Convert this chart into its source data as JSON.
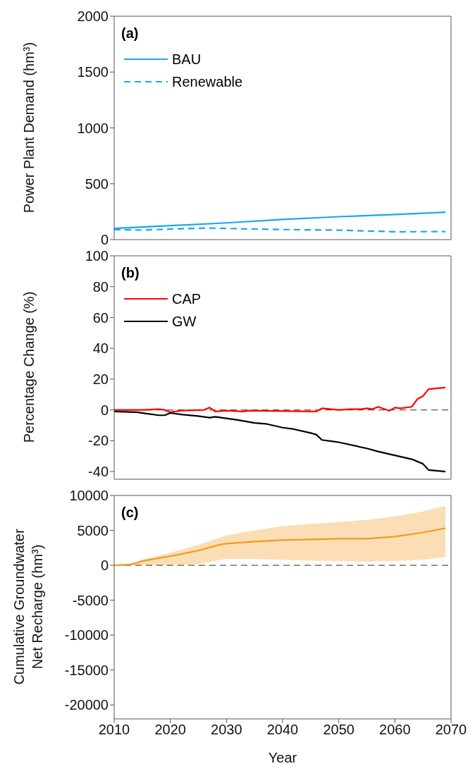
{
  "chart_data": [
    {
      "type": "line",
      "title": "(a)",
      "ylabel": "Power Plant Demand (hm³)",
      "xlim": [
        2010,
        2070
      ],
      "xticks": [
        2010,
        2020,
        2030,
        2040,
        2050,
        2060,
        2070
      ],
      "ylim": [
        0,
        2000
      ],
      "yticks": [
        0,
        500,
        1000,
        1500,
        2000
      ],
      "tick_labels": "y",
      "legend": "top left",
      "series": [
        {
          "name": "BAU",
          "color": "#1aa7ec",
          "line_style": "solid",
          "x": [
            2010,
            2020,
            2030,
            2040,
            2050,
            2060,
            2069
          ],
          "values": [
            100,
            125,
            150,
            180,
            205,
            225,
            245
          ]
        },
        {
          "name": "Renewable",
          "color": "#1aa7ec",
          "line_style": "dashed",
          "x": [
            2010,
            2015,
            2020,
            2027,
            2030,
            2035,
            2040,
            2050,
            2060,
            2069
          ],
          "values": [
            90,
            85,
            95,
            104,
            100,
            95,
            90,
            85,
            70,
            72
          ]
        }
      ]
    },
    {
      "type": "line",
      "title": "(b)",
      "ylabel": "Percentage Change (%)",
      "xlim": [
        2010,
        2070
      ],
      "xticks": [
        2010,
        2020,
        2030,
        2040,
        2050,
        2060,
        2070
      ],
      "ylim": [
        -45,
        100
      ],
      "yticks": [
        -40,
        -20,
        0,
        20,
        40,
        60,
        80,
        100
      ],
      "tick_labels": "y",
      "legend": "top left",
      "ref_lines": [
        {
          "axis": "y",
          "value": 0,
          "color": "#555555",
          "line_style": "dashed"
        }
      ],
      "series": [
        {
          "name": "CAP",
          "color": "#ff0000",
          "line_style": "solid",
          "x": [
            2010,
            2015,
            2018,
            2019,
            2020,
            2022,
            2026,
            2027,
            2028,
            2030,
            2033,
            2034,
            2046,
            2047,
            2050,
            2052,
            2054,
            2055,
            2056,
            2057,
            2059,
            2060,
            2061,
            2063,
            2064,
            2065,
            2066,
            2069
          ],
          "values": [
            0,
            0,
            0.5,
            0,
            -1.5,
            -0.5,
            0,
            1.5,
            -1,
            -0.5,
            -1,
            -0.5,
            -1,
            1,
            0,
            0.5,
            0.5,
            1,
            0.5,
            2,
            -0.5,
            1.5,
            1,
            2,
            7,
            9,
            13.5,
            14.5
          ]
        },
        {
          "name": "GW",
          "color": "#000000",
          "line_style": "solid",
          "x": [
            2010,
            2014,
            2016,
            2018,
            2019,
            2020,
            2022,
            2025,
            2027,
            2028,
            2030,
            2032,
            2035,
            2037,
            2040,
            2042,
            2045,
            2046,
            2047,
            2049,
            2050,
            2055,
            2057,
            2060,
            2063,
            2065,
            2066,
            2069
          ],
          "values": [
            -1,
            -1.5,
            -2.5,
            -3.5,
            -3.5,
            -2,
            -3,
            -4,
            -5,
            -4.5,
            -5.5,
            -6.5,
            -8.5,
            -9,
            -11.5,
            -12.5,
            -15,
            -16,
            -19.5,
            -20.5,
            -21,
            -25,
            -27,
            -29.5,
            -32,
            -35,
            -39,
            -40
          ]
        }
      ]
    },
    {
      "type": "line",
      "title": "(c)",
      "xlabel": "Year",
      "ylabel": "Cumulative Groundwater Net Recharge (hm³)",
      "xlim": [
        2010,
        2070
      ],
      "xticks": [
        2010,
        2020,
        2030,
        2040,
        2050,
        2060,
        2070
      ],
      "ylim": [
        -22000,
        10000
      ],
      "yticks": [
        -20000,
        -15000,
        -10000,
        -5000,
        0,
        5000,
        10000
      ],
      "ref_lines": [
        {
          "axis": "y",
          "value": 0,
          "color": "#555555",
          "line_style": "dashed"
        }
      ],
      "series": [
        {
          "color": "#f39c1f",
          "line_style": "solid",
          "x": [
            2010,
            2013,
            2015,
            2020,
            2025,
            2029,
            2030,
            2035,
            2040,
            2045,
            2050,
            2055,
            2060,
            2065,
            2069
          ],
          "values": [
            0,
            100,
            600,
            1300,
            2100,
            3000,
            3100,
            3400,
            3600,
            3700,
            3800,
            3800,
            4100,
            4700,
            5300
          ],
          "lower": [
            0,
            0,
            0,
            0,
            150,
            800,
            900,
            900,
            800,
            650,
            600,
            500,
            600,
            800,
            1200
          ],
          "upper": [
            0,
            300,
            800,
            1800,
            2900,
            4000,
            4300,
            5000,
            5600,
            5900,
            6200,
            6500,
            7000,
            7700,
            8500
          ]
        }
      ]
    }
  ]
}
